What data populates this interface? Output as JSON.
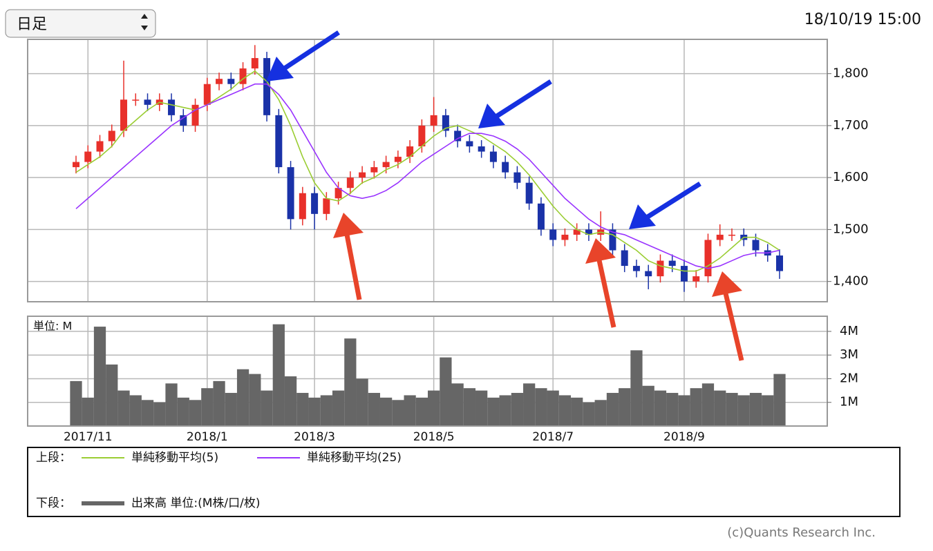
{
  "control": {
    "period_select": "日足"
  },
  "timestamp": "18/10/19 15:00",
  "copyright": "(c)Quants Research Inc.",
  "chart_data": [
    {
      "type": "candlestick",
      "categories": [
        null,
        "2017/11",
        null,
        null,
        null,
        null,
        null,
        null,
        null,
        null,
        null,
        "2018/1",
        null,
        null,
        null,
        null,
        null,
        null,
        null,
        null,
        "2018/3",
        null,
        null,
        null,
        null,
        null,
        null,
        null,
        null,
        null,
        "2018/5",
        null,
        null,
        null,
        null,
        null,
        null,
        null,
        null,
        null,
        "2018/7",
        null,
        null,
        null,
        null,
        null,
        null,
        null,
        null,
        null,
        null,
        "2018/9",
        null,
        null,
        null,
        null,
        null,
        null,
        null,
        null
      ],
      "open": [
        1620,
        1630,
        1650,
        1670,
        1690,
        1750,
        1750,
        1740,
        1750,
        1720,
        1700,
        1740,
        1780,
        1790,
        1780,
        1810,
        1830,
        1720,
        1620,
        1520,
        1570,
        1530,
        1560,
        1580,
        1600,
        1610,
        1620,
        1630,
        1640,
        1660,
        1700,
        1720,
        1690,
        1670,
        1660,
        1650,
        1630,
        1610,
        1590,
        1550,
        1500,
        1480,
        1490,
        1500,
        1490,
        1500,
        1460,
        1430,
        1420,
        1410,
        1440,
        1430,
        1400,
        1410,
        1480,
        1490,
        1490,
        1480,
        1460,
        1450
      ],
      "high": [
        1642,
        1662,
        1682,
        1702,
        1825,
        1762,
        1762,
        1762,
        1762,
        1732,
        1752,
        1792,
        1802,
        1802,
        1822,
        1855,
        1842,
        1732,
        1632,
        1582,
        1582,
        1572,
        1592,
        1612,
        1622,
        1632,
        1642,
        1652,
        1672,
        1712,
        1755,
        1732,
        1702,
        1682,
        1672,
        1662,
        1642,
        1622,
        1602,
        1562,
        1512,
        1502,
        1512,
        1512,
        1535,
        1512,
        1472,
        1442,
        1432,
        1452,
        1452,
        1442,
        1422,
        1492,
        1510,
        1502,
        1502,
        1492,
        1472,
        1462
      ],
      "low": [
        1608,
        1618,
        1638,
        1658,
        1678,
        1738,
        1728,
        1728,
        1708,
        1688,
        1688,
        1728,
        1768,
        1768,
        1768,
        1798,
        1708,
        1608,
        1500,
        1508,
        1500,
        1518,
        1548,
        1568,
        1588,
        1598,
        1608,
        1618,
        1628,
        1648,
        1688,
        1678,
        1658,
        1648,
        1638,
        1618,
        1598,
        1578,
        1538,
        1488,
        1468,
        1468,
        1478,
        1478,
        1478,
        1448,
        1418,
        1408,
        1385,
        1398,
        1418,
        1380,
        1388,
        1398,
        1468,
        1478,
        1468,
        1448,
        1438,
        1405
      ],
      "close": [
        1630,
        1650,
        1670,
        1690,
        1750,
        1750,
        1740,
        1750,
        1720,
        1700,
        1740,
        1780,
        1790,
        1780,
        1810,
        1830,
        1720,
        1620,
        1520,
        1570,
        1530,
        1560,
        1580,
        1600,
        1610,
        1620,
        1630,
        1640,
        1660,
        1700,
        1720,
        1690,
        1670,
        1660,
        1650,
        1630,
        1610,
        1590,
        1550,
        1500,
        1480,
        1490,
        1500,
        1490,
        1500,
        1460,
        1430,
        1420,
        1410,
        1440,
        1430,
        1400,
        1410,
        1480,
        1490,
        1490,
        1480,
        1460,
        1450,
        1420
      ],
      "up_color": "#e8302a",
      "down_color": "#1a32a8",
      "series": [
        {
          "name": "単純移動平均(5)",
          "color": "#9acd32",
          "values": [
            1610,
            1625,
            1640,
            1660,
            1690,
            1710,
            1730,
            1745,
            1740,
            1735,
            1730,
            1740,
            1755,
            1770,
            1790,
            1805,
            1785,
            1750,
            1700,
            1640,
            1590,
            1560,
            1555,
            1570,
            1590,
            1600,
            1615,
            1625,
            1640,
            1660,
            1680,
            1695,
            1700,
            1690,
            1680,
            1665,
            1650,
            1630,
            1605,
            1575,
            1545,
            1520,
            1500,
            1490,
            1495,
            1490,
            1475,
            1460,
            1440,
            1430,
            1425,
            1420,
            1420,
            1430,
            1445,
            1465,
            1485,
            1485,
            1475,
            1460
          ]
        },
        {
          "name": "単純移動平均(25)",
          "color": "#9933ff",
          "values": [
            1540,
            1560,
            1580,
            1600,
            1620,
            1640,
            1660,
            1680,
            1700,
            1715,
            1730,
            1740,
            1750,
            1760,
            1770,
            1780,
            1780,
            1760,
            1730,
            1690,
            1650,
            1610,
            1580,
            1565,
            1560,
            1565,
            1575,
            1590,
            1610,
            1630,
            1645,
            1660,
            1675,
            1685,
            1685,
            1680,
            1670,
            1655,
            1635,
            1610,
            1585,
            1560,
            1540,
            1520,
            1505,
            1495,
            1490,
            1480,
            1470,
            1460,
            1450,
            1440,
            1430,
            1425,
            1430,
            1440,
            1450,
            1455,
            1455,
            1460
          ]
        }
      ],
      "ylim": [
        1361,
        1866
      ],
      "yticks": [
        {
          "value": 1400,
          "label": "1,400"
        },
        {
          "value": 1500,
          "label": "1,500"
        },
        {
          "value": 1600,
          "label": "1,600"
        },
        {
          "value": 1700,
          "label": "1,700"
        },
        {
          "value": 1800,
          "label": "1,800"
        }
      ],
      "grid": true,
      "legend_label": "上段："
    },
    {
      "type": "bar",
      "unit_label": "単位: M",
      "name": "出来高 単位:(M株/口/枚)",
      "legend_label": "下段：",
      "color": "#666666",
      "values": [
        1.9,
        1.2,
        4.2,
        2.6,
        1.5,
        1.3,
        1.1,
        1.0,
        1.8,
        1.2,
        1.1,
        1.6,
        1.9,
        1.4,
        2.4,
        2.2,
        1.5,
        4.3,
        2.1,
        1.4,
        1.2,
        1.3,
        1.5,
        3.7,
        2.0,
        1.4,
        1.2,
        1.1,
        1.3,
        1.2,
        1.5,
        2.9,
        1.8,
        1.6,
        1.5,
        1.2,
        1.3,
        1.4,
        1.8,
        1.6,
        1.5,
        1.3,
        1.2,
        1.0,
        1.1,
        1.4,
        1.6,
        3.2,
        1.7,
        1.5,
        1.4,
        1.3,
        1.6,
        1.8,
        1.5,
        1.4,
        1.3,
        1.4,
        1.3,
        2.2
      ],
      "ylim": [
        0,
        4.64
      ],
      "yticks": [
        {
          "value": 1,
          "label": "1M"
        },
        {
          "value": 2,
          "label": "2M"
        },
        {
          "value": 3,
          "label": "3M"
        },
        {
          "value": 4,
          "label": "4M"
        }
      ],
      "grid": true
    }
  ]
}
